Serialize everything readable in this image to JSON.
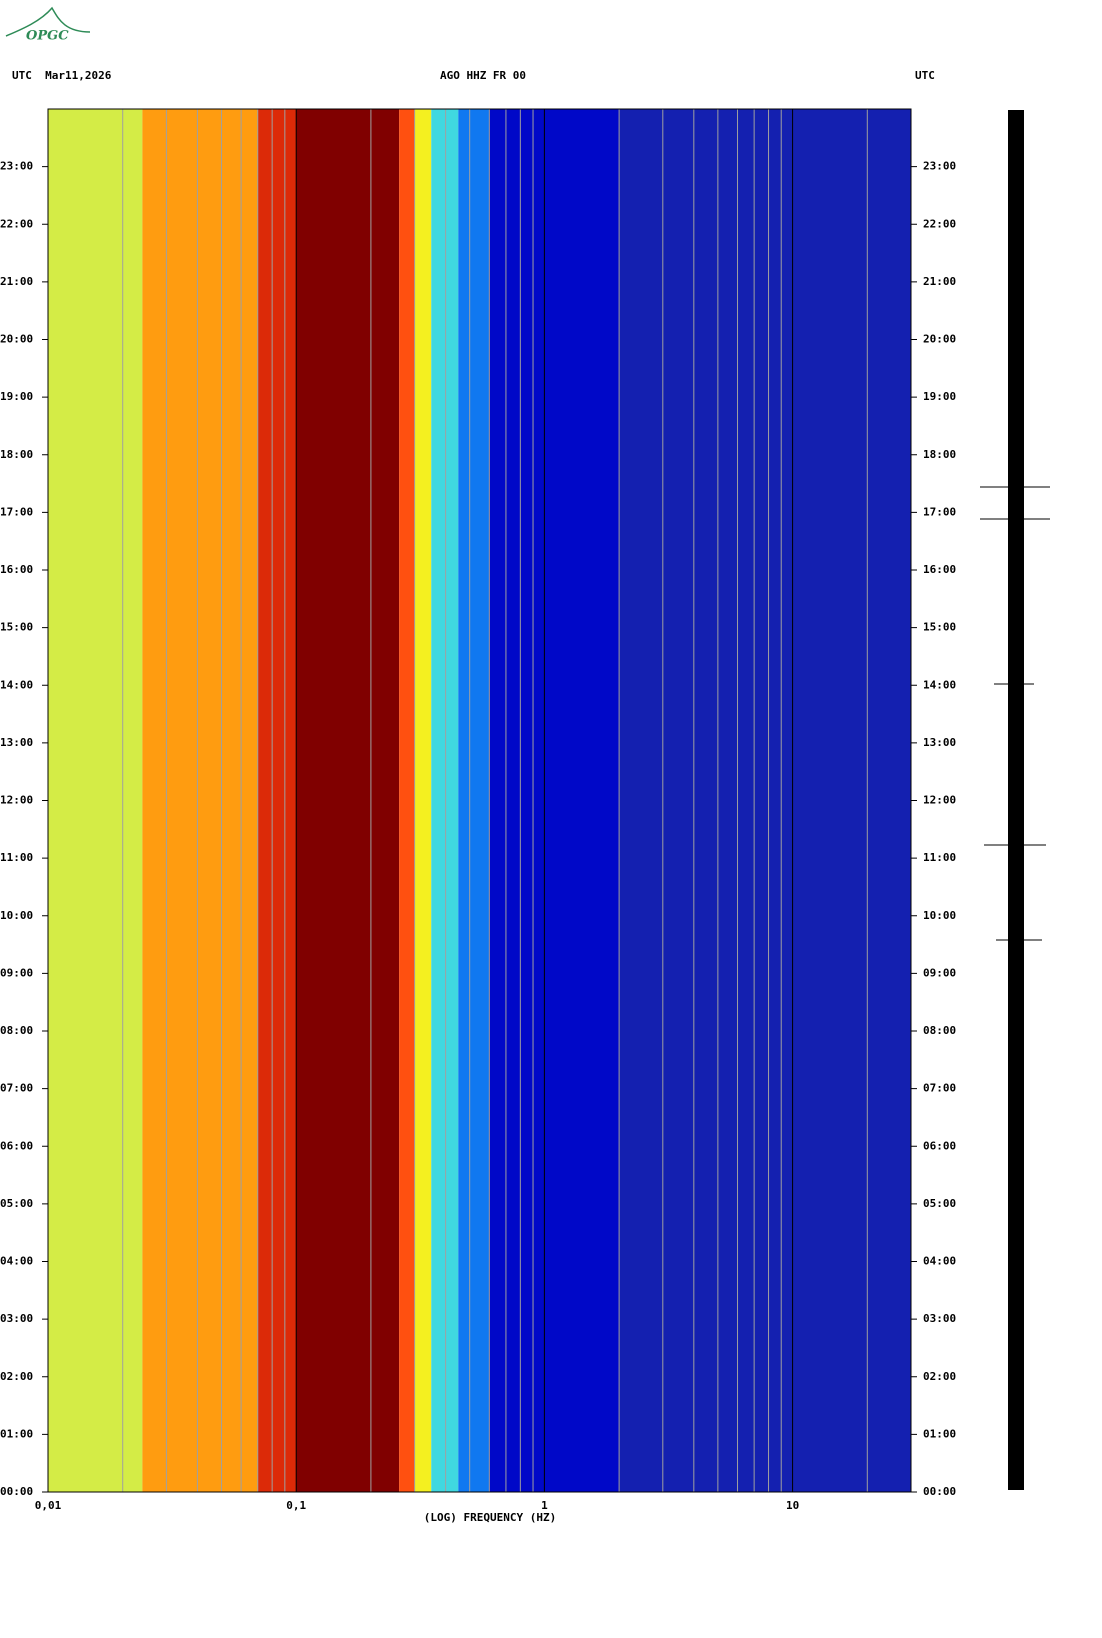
{
  "chart_data": {
    "type": "spectrogram",
    "logo": "OPGC",
    "title": "AGO HHZ FR 00",
    "left_header": "UTC  Mar11,2026",
    "right_header": "UTC",
    "xlabel": "(LOG) FREQUENCY (HZ)",
    "xscale": "log",
    "xlim": [
      0.01,
      30
    ],
    "xticks": [
      {
        "value": 0.01,
        "label": "0,01"
      },
      {
        "value": 0.1,
        "label": "0,1"
      },
      1,
      10
    ],
    "xgrid": [
      0.02,
      0.03,
      0.04,
      0.05,
      0.06,
      0.07,
      0.08,
      0.09,
      0.2,
      0.3,
      0.4,
      0.5,
      0.6,
      0.7,
      0.8,
      0.9,
      2,
      3,
      4,
      5,
      6,
      7,
      8,
      9,
      20
    ],
    "ylim": [
      0,
      24
    ],
    "yticks": [
      {
        "value": 0,
        "label": "00:00"
      },
      {
        "value": 1,
        "label": "01:00"
      },
      {
        "value": 2,
        "label": "02:00"
      },
      {
        "value": 3,
        "label": "03:00"
      },
      {
        "value": 4,
        "label": "04:00"
      },
      {
        "value": 5,
        "label": "05:00"
      },
      {
        "value": 6,
        "label": "06:00"
      },
      {
        "value": 7,
        "label": "07:00"
      },
      {
        "value": 8,
        "label": "08:00"
      },
      {
        "value": 9,
        "label": "09:00"
      },
      {
        "value": 10,
        "label": "10:00"
      },
      {
        "value": 11,
        "label": "11:00"
      },
      {
        "value": 12,
        "label": "12:00"
      },
      {
        "value": 13,
        "label": "13:00"
      },
      {
        "value": 14,
        "label": "14:00"
      },
      {
        "value": 15,
        "label": "15:00"
      },
      {
        "value": 16,
        "label": "16:00"
      },
      {
        "value": 17,
        "label": "17:00"
      },
      {
        "value": 18,
        "label": "18:00"
      },
      {
        "value": 19,
        "label": "19:00"
      },
      {
        "value": 20,
        "label": "20:00"
      },
      {
        "value": 21,
        "label": "21:00"
      },
      {
        "value": 22,
        "label": "22:00"
      },
      {
        "value": 23,
        "label": "23:00"
      }
    ],
    "bands": [
      {
        "from": 0.01,
        "to": 0.024,
        "color": "#d4ec46"
      },
      {
        "from": 0.024,
        "to": 0.07,
        "color": "#ff9c10"
      },
      {
        "from": 0.07,
        "to": 0.1,
        "color": "#dc2a08"
      },
      {
        "from": 0.1,
        "to": 0.26,
        "color": "#800000"
      },
      {
        "from": 0.26,
        "to": 0.3,
        "color": "#ff5010"
      },
      {
        "from": 0.3,
        "to": 0.35,
        "color": "#f4f020"
      },
      {
        "from": 0.35,
        "to": 0.45,
        "color": "#40d8e0"
      },
      {
        "from": 0.45,
        "to": 0.6,
        "color": "#1078f0"
      },
      {
        "from": 0.6,
        "to": 2,
        "color": "#0008c8"
      },
      {
        "from": 2,
        "to": 30,
        "color": "#1420b0"
      }
    ]
  }
}
